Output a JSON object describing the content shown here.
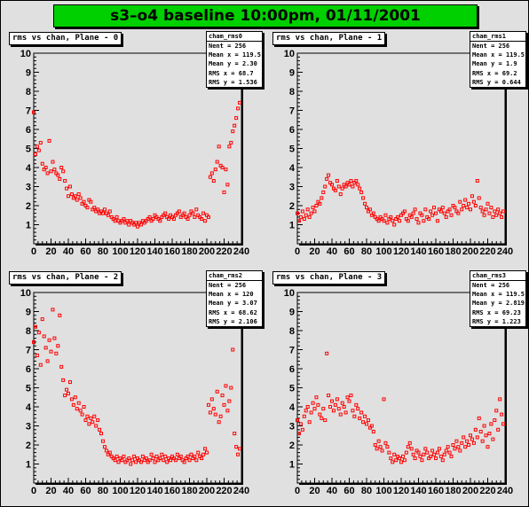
{
  "page": {
    "title": "s3–o4 baseline 10:00pm, 01/11/2001"
  },
  "colors": {
    "title_bg": "#00d000",
    "frame_bg": "#e0e0e0",
    "marker": "#ff0000",
    "stats_bg": "#ffffff"
  },
  "pads": [
    {
      "title": "rms vs chan, Plane - 0",
      "stats_name": "cham_rms0",
      "stats": [
        {
          "label": "Nent",
          "value": "= 256"
        },
        {
          "label": "Mean x",
          "value": "= 119.5"
        },
        {
          "label": "Mean y",
          "value": "= 2.30"
        },
        {
          "label": "RMS x",
          "value": "= 68.7"
        },
        {
          "label": "RMS y",
          "value": "= 1.536"
        }
      ]
    },
    {
      "title": "rms vs chan, Plane - 1",
      "stats_name": "cham_rms1",
      "stats": [
        {
          "label": "Nent",
          "value": "= 256"
        },
        {
          "label": "Mean x",
          "value": "= 119.5"
        },
        {
          "label": "Mean y",
          "value": "= 1.9"
        },
        {
          "label": "RMS x",
          "value": "= 69.2"
        },
        {
          "label": "RMS y",
          "value": "= 0.644"
        }
      ]
    },
    {
      "title": "rms vs chan, Plane - 2",
      "stats_name": "cham_rms2",
      "stats": [
        {
          "label": "Nent",
          "value": "= 256"
        },
        {
          "label": "Mean x",
          "value": "= 120"
        },
        {
          "label": "Mean y",
          "value": "= 3.07"
        },
        {
          "label": "RMS x",
          "value": "= 68.62"
        },
        {
          "label": "RMS y",
          "value": "= 2.106"
        }
      ]
    },
    {
      "title": "rms vs chan, Plane - 3",
      "stats_name": "cham_rms3",
      "stats": [
        {
          "label": "Nent",
          "value": "= 256"
        },
        {
          "label": "Mean x",
          "value": "= 119.5"
        },
        {
          "label": "Mean y",
          "value": "= 2.819"
        },
        {
          "label": "RMS x",
          "value": "= 69.23"
        },
        {
          "label": "RMS y",
          "value": "= 1.223"
        }
      ]
    }
  ],
  "chart_data": [
    {
      "type": "scatter",
      "title": "rms vs chan, Plane - 0",
      "xlim": [
        0,
        240
      ],
      "ylim": [
        0,
        10
      ],
      "xticks": [
        0,
        20,
        40,
        60,
        80,
        100,
        120,
        140,
        160,
        180,
        200,
        220,
        240
      ],
      "yticks": [
        1,
        2,
        3,
        4,
        5,
        6,
        7,
        8,
        9,
        10
      ],
      "marker_color": "#ff0000",
      "x": [
        0,
        2,
        4,
        6,
        8,
        10,
        12,
        14,
        16,
        18,
        20,
        22,
        24,
        26,
        28,
        30,
        32,
        34,
        36,
        38,
        40,
        42,
        44,
        46,
        48,
        50,
        52,
        54,
        56,
        58,
        60,
        62,
        64,
        66,
        68,
        70,
        72,
        74,
        76,
        78,
        80,
        82,
        84,
        86,
        88,
        90,
        92,
        94,
        96,
        98,
        100,
        102,
        104,
        106,
        108,
        110,
        112,
        114,
        116,
        118,
        120,
        122,
        124,
        126,
        128,
        130,
        132,
        134,
        136,
        138,
        140,
        142,
        144,
        146,
        148,
        150,
        152,
        154,
        156,
        158,
        160,
        162,
        164,
        166,
        168,
        170,
        172,
        174,
        176,
        178,
        180,
        182,
        184,
        186,
        188,
        190,
        192,
        194,
        196,
        198,
        200,
        202,
        204,
        206,
        208,
        210,
        212,
        214,
        216,
        218,
        220,
        222,
        224,
        226,
        228,
        230,
        232,
        234,
        236,
        238
      ],
      "y": [
        6.9,
        4.7,
        5.1,
        4.9,
        5.3,
        4.2,
        3.9,
        4.0,
        3.7,
        5.4,
        3.8,
        4.3,
        3.9,
        3.7,
        3.6,
        3.4,
        4.0,
        3.8,
        3.3,
        2.9,
        2.5,
        3.0,
        2.6,
        2.4,
        2.5,
        2.3,
        2.6,
        2.4,
        2.1,
        2.2,
        2.0,
        1.9,
        2.3,
        2.2,
        1.8,
        1.9,
        1.7,
        1.8,
        1.6,
        1.7,
        1.6,
        1.8,
        1.6,
        1.5,
        1.7,
        1.4,
        1.3,
        1.2,
        1.4,
        1.2,
        1.1,
        1.2,
        1.3,
        1.1,
        1.2,
        1.0,
        1.2,
        1.1,
        1.0,
        1.1,
        0.9,
        1.1,
        1.0,
        1.2,
        1.1,
        1.2,
        1.3,
        1.4,
        1.2,
        1.3,
        1.5,
        1.4,
        1.3,
        1.2,
        1.4,
        1.5,
        1.6,
        1.4,
        1.3,
        1.5,
        1.4,
        1.3,
        1.5,
        1.6,
        1.7,
        1.4,
        1.5,
        1.6,
        1.4,
        1.3,
        1.5,
        1.7,
        1.6,
        1.4,
        1.8,
        1.5,
        1.4,
        1.3,
        1.6,
        1.2,
        1.5,
        1.4,
        3.5,
        3.7,
        3.3,
        3.9,
        4.3,
        5.1,
        4.1,
        4.0,
        2.7,
        3.9,
        3.1,
        5.1,
        5.3,
        5.9,
        6.2,
        6.6,
        7.1,
        7.4
      ]
    },
    {
      "type": "scatter",
      "title": "rms vs chan, Plane - 1",
      "xlim": [
        0,
        240
      ],
      "ylim": [
        0,
        10
      ],
      "xticks": [
        0,
        20,
        40,
        60,
        80,
        100,
        120,
        140,
        160,
        180,
        200,
        220,
        240
      ],
      "yticks": [
        1,
        2,
        3,
        4,
        5,
        6,
        7,
        8,
        9,
        10
      ],
      "marker_color": "#ff0000",
      "x": [
        0,
        2,
        4,
        6,
        8,
        10,
        12,
        14,
        16,
        18,
        20,
        22,
        24,
        26,
        28,
        30,
        32,
        34,
        36,
        38,
        40,
        42,
        44,
        46,
        48,
        50,
        52,
        54,
        56,
        58,
        60,
        62,
        64,
        66,
        68,
        70,
        72,
        74,
        76,
        78,
        80,
        82,
        84,
        86,
        88,
        90,
        92,
        94,
        96,
        98,
        100,
        102,
        104,
        106,
        108,
        110,
        112,
        114,
        116,
        118,
        120,
        122,
        124,
        126,
        128,
        130,
        132,
        134,
        136,
        138,
        140,
        142,
        144,
        146,
        148,
        150,
        152,
        154,
        156,
        158,
        160,
        162,
        164,
        166,
        168,
        170,
        172,
        174,
        176,
        178,
        180,
        182,
        184,
        186,
        188,
        190,
        192,
        194,
        196,
        198,
        200,
        202,
        204,
        206,
        208,
        210,
        212,
        214,
        216,
        218,
        220,
        222,
        224,
        226,
        228,
        230,
        232,
        234,
        236,
        238
      ],
      "y": [
        1.6,
        1.2,
        1.4,
        1.7,
        1.3,
        1.5,
        1.8,
        1.4,
        1.6,
        1.9,
        1.7,
        2.0,
        2.2,
        2.1,
        2.4,
        2.7,
        3.0,
        3.4,
        3.6,
        3.2,
        3.1,
        2.9,
        2.8,
        3.3,
        3.0,
        2.6,
        2.9,
        3.1,
        3.0,
        3.2,
        3.1,
        3.3,
        3.0,
        3.2,
        3.3,
        3.1,
        2.9,
        2.7,
        2.4,
        2.1,
        1.9,
        1.7,
        1.8,
        1.5,
        1.6,
        1.4,
        1.3,
        1.2,
        1.4,
        1.3,
        1.2,
        1.5,
        1.1,
        1.3,
        1.4,
        1.2,
        1.0,
        1.3,
        1.4,
        1.2,
        1.5,
        1.6,
        1.7,
        1.3,
        1.2,
        1.5,
        1.4,
        1.6,
        1.8,
        1.3,
        1.1,
        1.6,
        1.5,
        1.2,
        1.8,
        1.4,
        1.3,
        1.7,
        1.5,
        1.9,
        1.6,
        1.2,
        1.8,
        1.7,
        1.9,
        1.6,
        1.4,
        1.7,
        1.8,
        1.5,
        2.0,
        1.9,
        1.7,
        1.6,
        2.2,
        1.8,
        2.0,
        2.3,
        1.9,
        2.1,
        1.8,
        2.5,
        2.2,
        2.0,
        3.3,
        2.4,
        1.9,
        1.7,
        1.5,
        1.8,
        2.1,
        1.6,
        1.9,
        1.4,
        1.7,
        1.5,
        1.8,
        1.6,
        1.4,
        1.7
      ]
    },
    {
      "type": "scatter",
      "title": "rms vs chan, Plane - 2",
      "xlim": [
        0,
        240
      ],
      "ylim": [
        0,
        10
      ],
      "xticks": [
        0,
        20,
        40,
        60,
        80,
        100,
        120,
        140,
        160,
        180,
        200,
        220,
        240
      ],
      "yticks": [
        1,
        2,
        3,
        4,
        5,
        6,
        7,
        8,
        9,
        10
      ],
      "marker_color": "#ff0000",
      "x": [
        0,
        2,
        4,
        6,
        8,
        10,
        12,
        14,
        16,
        18,
        20,
        22,
        24,
        26,
        28,
        30,
        32,
        34,
        36,
        38,
        40,
        42,
        44,
        46,
        48,
        50,
        52,
        54,
        56,
        58,
        60,
        62,
        64,
        66,
        68,
        70,
        72,
        74,
        76,
        78,
        80,
        82,
        84,
        86,
        88,
        90,
        92,
        94,
        96,
        98,
        100,
        102,
        104,
        106,
        108,
        110,
        112,
        114,
        116,
        118,
        120,
        122,
        124,
        126,
        128,
        130,
        132,
        134,
        136,
        138,
        140,
        142,
        144,
        146,
        148,
        150,
        152,
        154,
        156,
        158,
        160,
        162,
        164,
        166,
        168,
        170,
        172,
        174,
        176,
        178,
        180,
        182,
        184,
        186,
        188,
        190,
        192,
        194,
        196,
        198,
        200,
        202,
        204,
        206,
        208,
        210,
        212,
        214,
        216,
        218,
        220,
        222,
        224,
        226,
        228,
        230,
        232,
        234,
        236,
        238
      ],
      "y": [
        7.4,
        8.2,
        6.7,
        7.9,
        6.2,
        8.6,
        7.7,
        7.1,
        6.4,
        7.5,
        6.9,
        9.1,
        7.6,
        6.8,
        7.2,
        8.8,
        6.1,
        5.4,
        4.6,
        4.9,
        4.7,
        5.3,
        4.4,
        4.1,
        4.5,
        3.9,
        4.2,
        3.8,
        3.6,
        4.0,
        3.3,
        3.5,
        3.1,
        3.4,
        3.2,
        3.5,
        3.0,
        3.3,
        2.8,
        2.6,
        2.2,
        1.9,
        1.7,
        1.5,
        1.6,
        1.4,
        1.3,
        1.2,
        1.4,
        1.1,
        1.3,
        1.2,
        1.4,
        1.1,
        1.2,
        1.3,
        1.0,
        1.2,
        1.4,
        1.1,
        1.3,
        1.2,
        1.1,
        1.4,
        1.2,
        1.3,
        1.1,
        1.2,
        1.5,
        1.3,
        1.1,
        1.4,
        1.2,
        1.3,
        1.5,
        1.2,
        1.4,
        1.1,
        1.3,
        1.2,
        1.4,
        1.3,
        1.2,
        1.5,
        1.3,
        1.4,
        1.2,
        1.1,
        1.3,
        1.4,
        1.2,
        1.5,
        1.3,
        1.4,
        1.2,
        1.6,
        1.4,
        1.3,
        1.5,
        1.8,
        1.6,
        4.1,
        3.7,
        4.4,
        3.9,
        3.6,
        4.8,
        3.2,
        3.5,
        4.6,
        4.1,
        5.1,
        3.8,
        4.3,
        5.0,
        7.0,
        2.6,
        1.9,
        1.5,
        1.8
      ]
    },
    {
      "type": "scatter",
      "title": "rms vs chan, Plane - 3",
      "xlim": [
        0,
        240
      ],
      "ylim": [
        0,
        10
      ],
      "xticks": [
        0,
        20,
        40,
        60,
        80,
        100,
        120,
        140,
        160,
        180,
        200,
        220,
        240
      ],
      "yticks": [
        1,
        2,
        3,
        4,
        5,
        6,
        7,
        8,
        9,
        10
      ],
      "marker_color": "#ff0000",
      "x": [
        0,
        2,
        4,
        6,
        8,
        10,
        12,
        14,
        16,
        18,
        20,
        22,
        24,
        26,
        28,
        30,
        32,
        34,
        36,
        38,
        40,
        42,
        44,
        46,
        48,
        50,
        52,
        54,
        56,
        58,
        60,
        62,
        64,
        66,
        68,
        70,
        72,
        74,
        76,
        78,
        80,
        82,
        84,
        86,
        88,
        90,
        92,
        94,
        96,
        98,
        100,
        102,
        104,
        106,
        108,
        110,
        112,
        114,
        116,
        118,
        120,
        122,
        124,
        126,
        128,
        130,
        132,
        134,
        136,
        138,
        140,
        142,
        144,
        146,
        148,
        150,
        152,
        154,
        156,
        158,
        160,
        162,
        164,
        166,
        168,
        170,
        172,
        174,
        176,
        178,
        180,
        182,
        184,
        186,
        188,
        190,
        192,
        194,
        196,
        198,
        200,
        202,
        204,
        206,
        208,
        210,
        212,
        214,
        216,
        218,
        220,
        222,
        224,
        226,
        228,
        230,
        232,
        234,
        236,
        238
      ],
      "y": [
        3.3,
        2.6,
        3.1,
        2.8,
        3.5,
        3.8,
        4.0,
        3.2,
        3.7,
        4.2,
        3.9,
        4.5,
        4.1,
        3.6,
        3.4,
        3.9,
        3.3,
        6.8,
        4.6,
        4.0,
        4.3,
        3.8,
        4.1,
        4.4,
        3.9,
        3.6,
        4.2,
        4.0,
        3.7,
        4.5,
        4.3,
        4.6,
        3.8,
        3.5,
        4.1,
        3.9,
        3.4,
        3.7,
        3.2,
        3.5,
        3.1,
        3.3,
        2.9,
        3.0,
        2.7,
        2.0,
        1.8,
        2.2,
        1.9,
        1.7,
        4.4,
        2.1,
        1.9,
        1.6,
        1.3,
        1.1,
        1.5,
        1.2,
        1.4,
        1.3,
        1.1,
        1.4,
        1.2,
        1.6,
        1.9,
        2.1,
        1.8,
        1.5,
        1.3,
        1.7,
        1.6,
        1.4,
        1.2,
        1.5,
        1.8,
        1.6,
        1.3,
        1.4,
        1.7,
        1.5,
        1.3,
        1.6,
        1.8,
        1.4,
        1.2,
        1.5,
        1.7,
        1.9,
        1.6,
        1.4,
        2.0,
        1.8,
        2.2,
        1.9,
        1.7,
        2.1,
        2.4,
        1.9,
        2.2,
        2.0,
        2.5,
        2.3,
        2.1,
        2.8,
        2.4,
        3.4,
        2.7,
        2.2,
        3.0,
        2.5,
        1.9,
        2.6,
        3.1,
        2.3,
        3.3,
        3.8,
        2.8,
        4.4,
        3.6,
        3.1
      ]
    }
  ]
}
